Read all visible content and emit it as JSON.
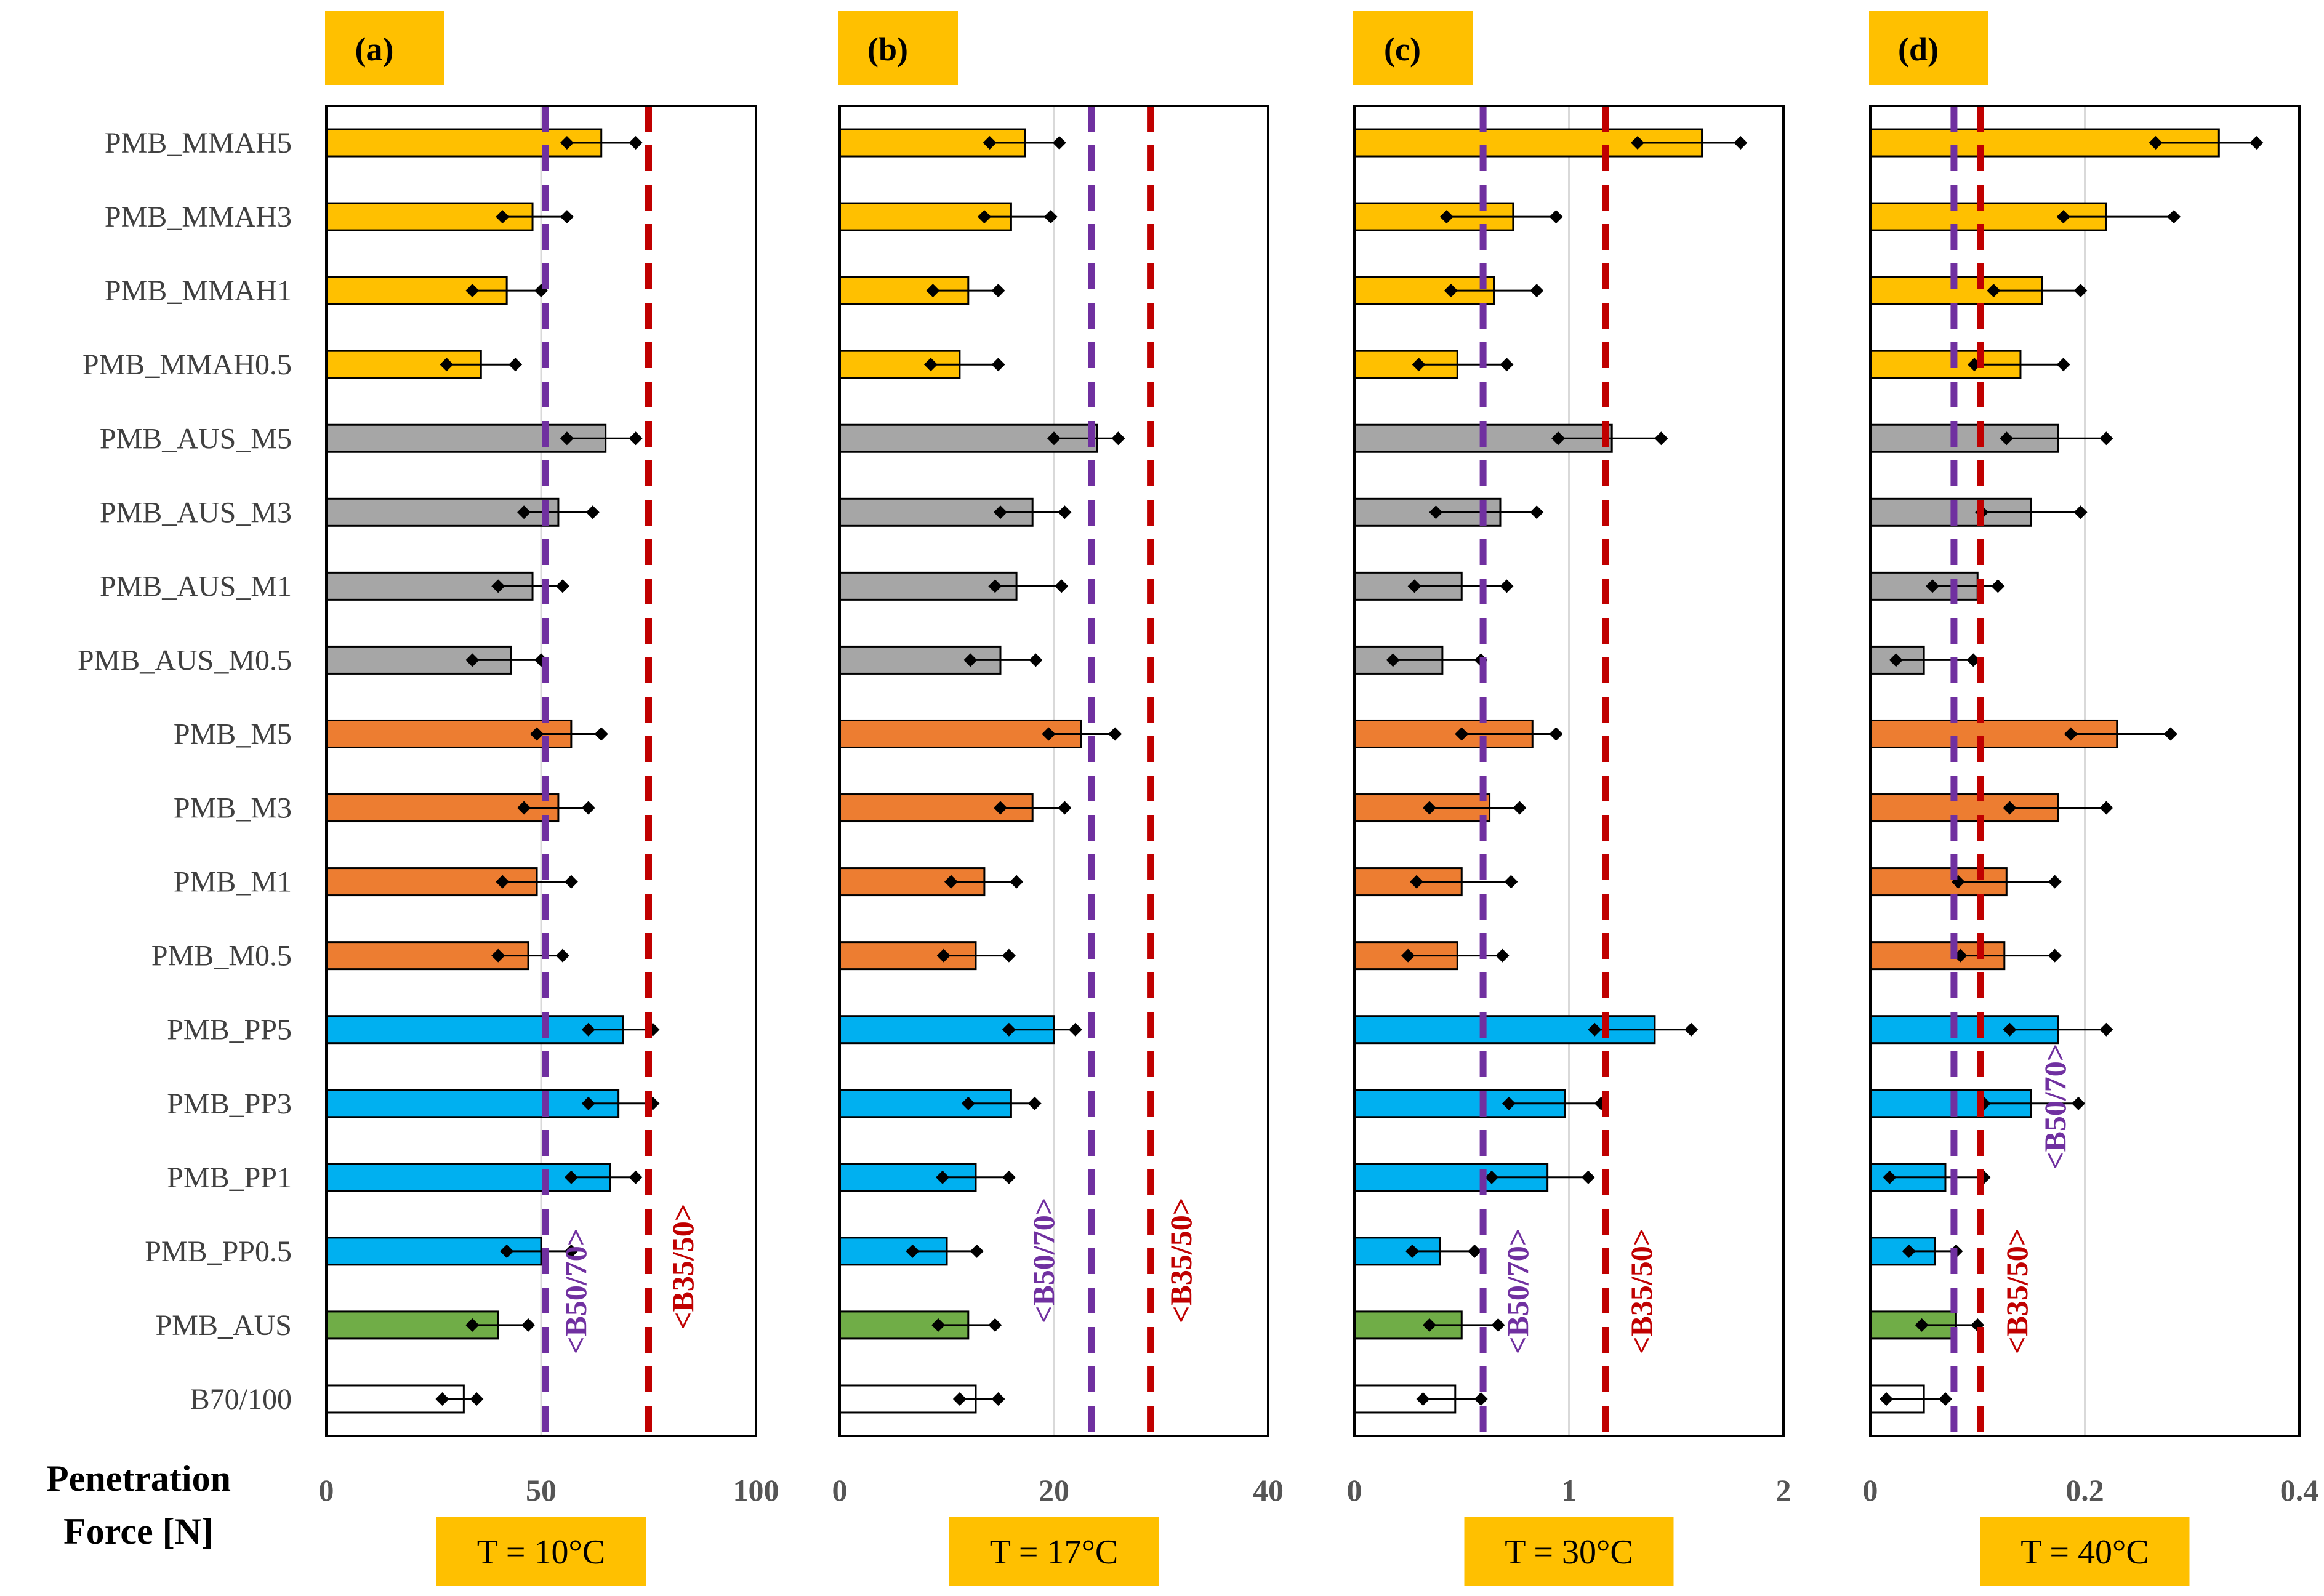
{
  "colors": {
    "MMAH": "#FFC000",
    "AUS_M": "#A6A6A6",
    "M": "#ED7D31",
    "PP": "#00B0F0",
    "AUS": "#70AD47",
    "base": "#FFFFFF",
    "B50_70": "#7030A0",
    "B35_50": "#C00000",
    "label_box": "#FFC000"
  },
  "x_axis_label": [
    "Penetration",
    "Force [N]"
  ],
  "chart_data": {
    "type": "bar",
    "orientation": "horizontal",
    "xlabel": "Penetration Force [N]",
    "categories": [
      "PMB_MMAH5",
      "PMB_MMAH3",
      "PMB_MMAH1",
      "PMB_MMAH0.5",
      "PMB_AUS_M5",
      "PMB_AUS_M3",
      "PMB_AUS_M1",
      "PMB_AUS_M0.5",
      "PMB_M5",
      "PMB_M3",
      "PMB_M1",
      "PMB_M0.5",
      "PMB_PP5",
      "PMB_PP3",
      "PMB_PP1",
      "PMB_PP0.5",
      "PMB_AUS",
      "B70/100"
    ],
    "category_groups": [
      "MMAH",
      "MMAH",
      "MMAH",
      "MMAH",
      "AUS_M",
      "AUS_M",
      "AUS_M",
      "AUS_M",
      "M",
      "M",
      "M",
      "M",
      "PP",
      "PP",
      "PP",
      "PP",
      "AUS",
      "base"
    ],
    "panels": [
      {
        "label": "(a)",
        "temperature": "T = 10°C",
        "xlim": [
          0,
          100
        ],
        "ticks": [
          "0",
          "50",
          "100"
        ],
        "values": [
          64,
          48,
          42,
          36,
          65,
          54,
          48,
          43,
          57,
          54,
          49,
          47,
          69,
          68,
          66,
          50,
          40,
          32
        ],
        "min": [
          56,
          41,
          34,
          28,
          56,
          46,
          40,
          34,
          49,
          46,
          41,
          40,
          61,
          61,
          57,
          42,
          34,
          27
        ],
        "max": [
          72,
          56,
          50,
          44,
          72,
          62,
          55,
          50,
          64,
          61,
          57,
          55,
          76,
          76,
          72,
          57,
          47,
          35
        ],
        "references": [
          {
            "name": "B50/70",
            "label": "<B50/70>",
            "value": 51,
            "color": "#7030A0"
          },
          {
            "name": "B35/50",
            "label": "<B35/50>",
            "value": 75,
            "color": "#C00000"
          }
        ]
      },
      {
        "label": "(b)",
        "temperature": "T = 17°C",
        "xlim": [
          0,
          40
        ],
        "ticks": [
          "0",
          "20",
          "40"
        ],
        "values": [
          17.3,
          16.0,
          12.0,
          11.2,
          24.0,
          18.0,
          16.5,
          15.0,
          22.5,
          18.0,
          13.5,
          12.7,
          20.0,
          16.0,
          12.7,
          10.0,
          12.0,
          12.7
        ],
        "min": [
          14.0,
          13.5,
          8.7,
          8.5,
          20.0,
          15.0,
          14.5,
          12.2,
          19.5,
          15.0,
          10.4,
          9.7,
          15.8,
          12.0,
          9.6,
          6.8,
          9.2,
          11.2
        ],
        "max": [
          20.5,
          19.7,
          14.8,
          14.8,
          26.0,
          21.0,
          20.7,
          18.3,
          25.7,
          21.0,
          16.5,
          15.8,
          22.0,
          18.2,
          15.8,
          12.8,
          14.5,
          14.8
        ],
        "references": [
          {
            "name": "B50/70",
            "label": "<B50/70>",
            "value": 23.5,
            "color": "#7030A0"
          },
          {
            "name": "B35/50",
            "label": "<B35/50>",
            "value": 29,
            "color": "#C00000"
          }
        ]
      },
      {
        "label": "(c)",
        "temperature": "T = 30°C",
        "xlim": [
          0,
          2
        ],
        "ticks": [
          "0",
          "1",
          "2"
        ],
        "values": [
          1.62,
          0.74,
          0.65,
          0.48,
          1.2,
          0.68,
          0.5,
          0.41,
          0.83,
          0.63,
          0.5,
          0.48,
          1.4,
          0.98,
          0.9,
          0.4,
          0.5,
          0.47
        ],
        "min": [
          1.32,
          0.43,
          0.45,
          0.3,
          0.95,
          0.38,
          0.28,
          0.18,
          0.5,
          0.35,
          0.29,
          0.25,
          1.12,
          0.72,
          0.64,
          0.27,
          0.35,
          0.32
        ],
        "max": [
          1.8,
          0.94,
          0.85,
          0.71,
          1.43,
          0.85,
          0.71,
          0.59,
          0.94,
          0.77,
          0.73,
          0.69,
          1.57,
          1.15,
          1.09,
          0.56,
          0.67,
          0.59
        ],
        "references": [
          {
            "name": "B50/70",
            "label": "<B50/70>",
            "value": 0.6,
            "color": "#7030A0"
          },
          {
            "name": "B35/50",
            "label": "<B35/50>",
            "value": 1.17,
            "color": "#C00000"
          }
        ]
      },
      {
        "label": "(d)",
        "temperature": "T = 40°C",
        "xlim": [
          0,
          0.4
        ],
        "ticks": [
          "0",
          "0.2",
          "0.4"
        ],
        "values": [
          0.325,
          0.22,
          0.16,
          0.14,
          0.175,
          0.15,
          0.1,
          0.05,
          0.23,
          0.175,
          0.127,
          0.125,
          0.175,
          0.15,
          0.07,
          0.06,
          0.08,
          0.05
        ],
        "min": [
          0.266,
          0.18,
          0.115,
          0.097,
          0.127,
          0.104,
          0.058,
          0.024,
          0.187,
          0.13,
          0.082,
          0.084,
          0.13,
          0.106,
          0.018,
          0.036,
          0.048,
          0.015
        ],
        "max": [
          0.36,
          0.283,
          0.196,
          0.18,
          0.22,
          0.196,
          0.119,
          0.096,
          0.28,
          0.22,
          0.172,
          0.172,
          0.22,
          0.194,
          0.106,
          0.08,
          0.1,
          0.07
        ],
        "references": [
          {
            "name": "B50/70",
            "label": "<B50/70>",
            "value": 0.078,
            "color": "#7030A0"
          },
          {
            "name": "B35/50",
            "label": "<B35/50>",
            "value": 0.103,
            "color": "#C00000"
          }
        ]
      }
    ]
  }
}
